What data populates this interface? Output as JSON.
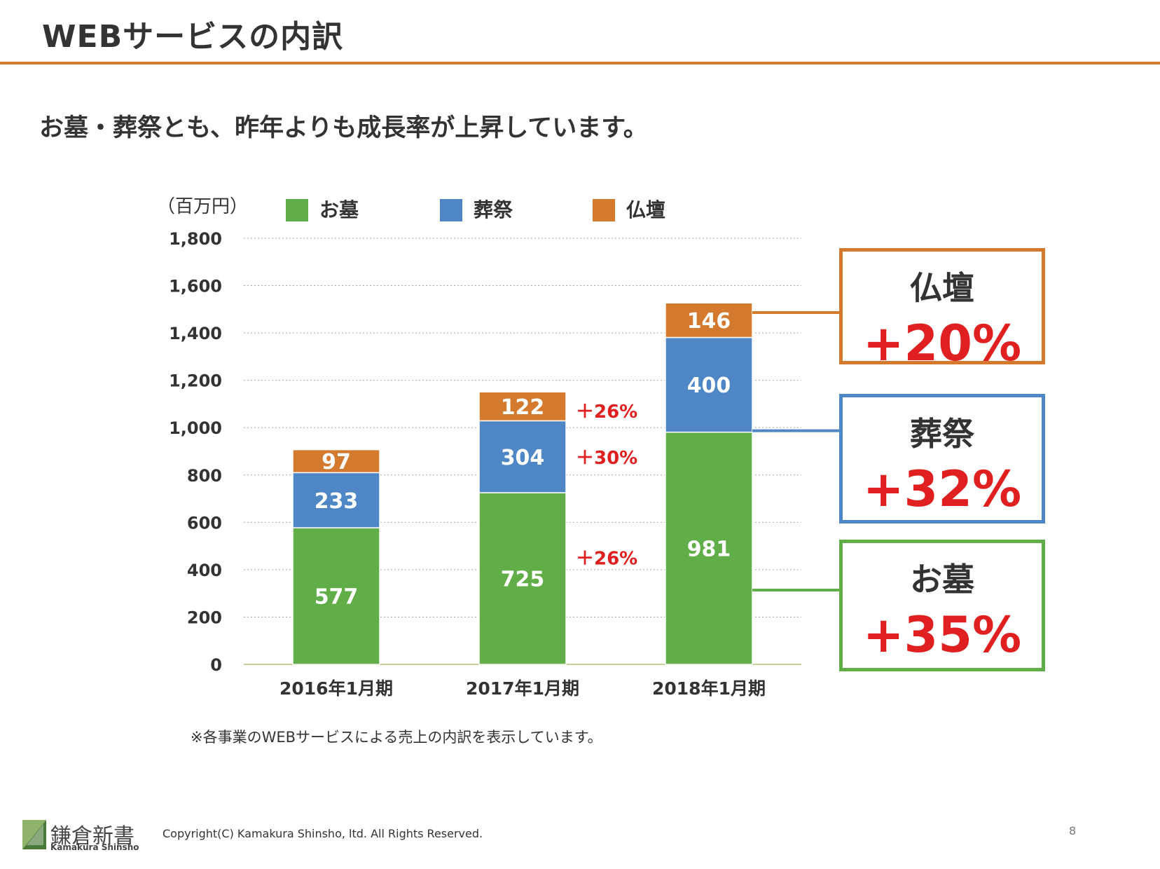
{
  "page": {
    "title": "WEBサービスの内訳",
    "subtitle": "お墓・葬祭とも、昨年よりも成長率が上昇しています。",
    "note": "※各事業のWEBサービスによる売上の内訳を表示しています。",
    "page_number": "8"
  },
  "footer": {
    "logo_name": "鎌倉新書",
    "logo_sub": "Kamakura Shinsho",
    "copyright": "Copyright(C) Kamakura Shinsho, ltd. All Rights Reserved."
  },
  "colors": {
    "accent": "#d47a2e",
    "ohaka": "#61ad47",
    "sousai": "#4f86c6",
    "butsudan": "#d47a2e",
    "growth_text": "#e02020"
  },
  "chart_data": {
    "type": "bar",
    "stacked": true,
    "unit_label": "（百万円）",
    "categories": [
      "2016年1月期",
      "2017年1月期",
      "2018年1月期"
    ],
    "series": [
      {
        "name": "お墓",
        "color": "#61ad47",
        "values": [
          577,
          725,
          981
        ]
      },
      {
        "name": "葬祭",
        "color": "#4f86c6",
        "values": [
          233,
          304,
          400
        ]
      },
      {
        "name": "仏壇",
        "color": "#d47a2e",
        "values": [
          97,
          122,
          146
        ]
      }
    ],
    "ylim": [
      0,
      1800
    ],
    "yticks": [
      0,
      200,
      400,
      600,
      800,
      1000,
      1200,
      1400,
      1600,
      1800
    ],
    "ytick_labels": [
      "0",
      "200",
      "400",
      "600",
      "800",
      "1,000",
      "1,200",
      "1,400",
      "1,600",
      "1,800"
    ],
    "grid": true,
    "legend_position": "top",
    "growth_2017": {
      "お墓": "＋26%",
      "葬祭": "＋30%",
      "仏壇": "＋26%"
    },
    "callouts": [
      {
        "name": "仏壇",
        "label": "仏壇",
        "value": "+20%",
        "color": "#d47a2e"
      },
      {
        "name": "葬祭",
        "label": "葬祭",
        "value": "+32%",
        "color": "#4f86c6"
      },
      {
        "name": "お墓",
        "label": "お墓",
        "value": "+35%",
        "color": "#61ad47"
      }
    ]
  }
}
